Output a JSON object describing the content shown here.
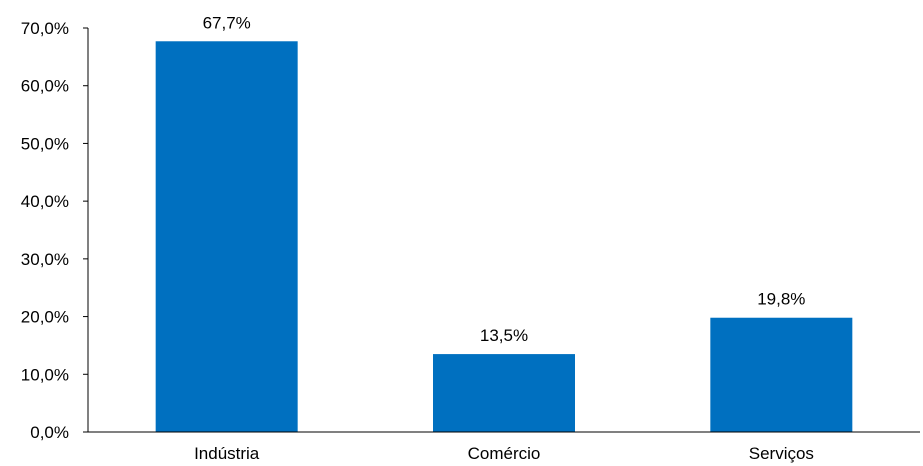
{
  "chart_data": {
    "type": "bar",
    "title": "",
    "categories": [
      "Indústria",
      "Comércio",
      "Serviços"
    ],
    "values": [
      67.7,
      13.5,
      19.8
    ],
    "value_labels": [
      "67,7%",
      "13,5%",
      "19,8%"
    ],
    "ylim": [
      0,
      70
    ],
    "yticks": [
      0,
      10,
      20,
      30,
      40,
      50,
      60,
      70
    ],
    "ytick_labels": [
      "0,0%",
      "10,0%",
      "20,0%",
      "30,0%",
      "40,0%",
      "50,0%",
      "60,0%",
      "70,0%"
    ],
    "xlabel": "",
    "ylabel": "",
    "grid": false,
    "legend": "none",
    "bar_color": "#0070C0",
    "axis_color": "#000000"
  }
}
